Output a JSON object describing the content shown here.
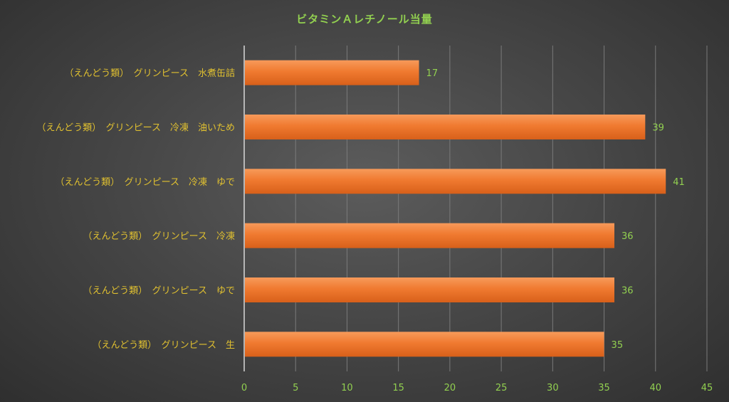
{
  "chart_data": {
    "type": "bar",
    "orientation": "horizontal",
    "title": "ビタミンＡレチノール当量",
    "categories": [
      "（えんどう類）　グリンピース　水煮缶詰",
      "（えんどう類）　グリンピース　冷凍　油いため",
      "（えんどう類）　グリンピース　冷凍　ゆで",
      "（えんどう類）　グリンピース　冷凍",
      "（えんどう類）　グリンピース　ゆで",
      "（えんどう類）　グリンピース　生"
    ],
    "values": [
      17,
      39,
      41,
      36,
      36,
      35
    ],
    "xlim": [
      0,
      45
    ],
    "xticks": [
      0,
      5,
      10,
      15,
      20,
      25,
      30,
      35,
      40,
      45
    ],
    "grid": true,
    "bar_color": "#f07a30"
  }
}
